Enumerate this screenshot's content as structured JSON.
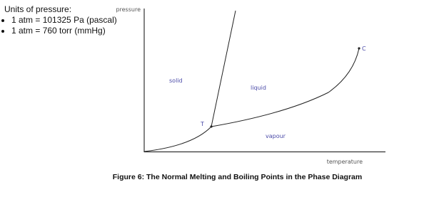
{
  "notes": {
    "heading": "Units of pressure:",
    "items": [
      "1 atm = 101325  Pa (pascal)",
      "1 atm = 760 torr (mmHg)"
    ]
  },
  "diagram": {
    "y_axis_label": "pressure",
    "x_axis_label": "temperature",
    "regions": [
      "solid",
      "liquid",
      "vapour"
    ],
    "points": [
      "T",
      "C"
    ]
  },
  "caption": "Figure 6: The Normal Melting and Boiling Points in the Phase Diagram"
}
